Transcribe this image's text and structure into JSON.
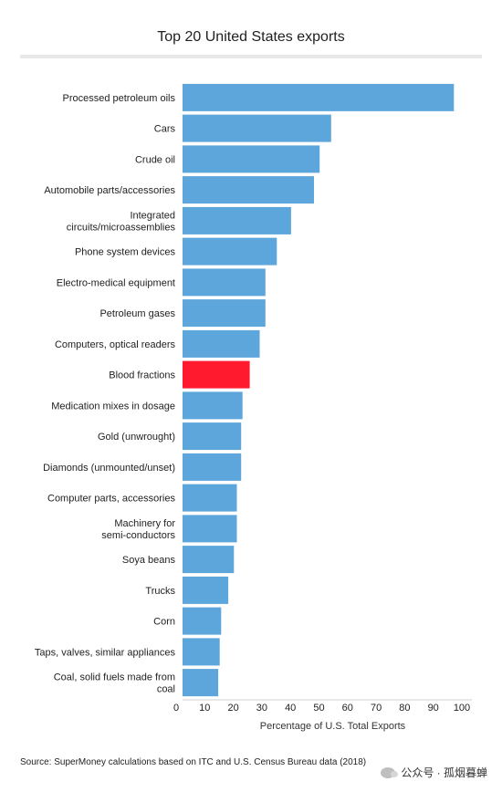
{
  "chart_data": {
    "type": "bar",
    "orientation": "horizontal",
    "title": "Top 20 United States exports",
    "xlabel": "Percentage of U.S. Total Exports",
    "ylabel": "",
    "xlim": [
      0,
      100
    ],
    "xticks": [
      0,
      10,
      20,
      30,
      40,
      50,
      60,
      70,
      80,
      90,
      100
    ],
    "grid": false,
    "categories": [
      "Processed petroleum oils",
      "Cars",
      "Crude oil",
      "Automobile parts/accessories",
      "Integrated\ncircuits/microassemblies",
      "Phone system devices",
      "Electro-medical equipment",
      "Petroleum gases",
      "Computers, optical readers",
      "Blood fractions",
      "Medication mixes in dosage",
      "Gold (unwrought)",
      "Diamonds (unmounted/unset)",
      "Computer parts, accessories",
      "Machinery for\nsemi-conductors",
      "Soya beans",
      "Trucks",
      "Corn",
      "Taps, valves, similar appliances",
      "Coal, solid fuels made from\ncoal"
    ],
    "values": [
      95,
      52,
      48,
      46,
      38,
      33,
      29,
      29,
      27,
      23.5,
      21,
      20.5,
      20.5,
      19,
      19,
      18,
      16,
      13.5,
      13,
      12.5
    ],
    "colors": {
      "default": "#5ca6dc",
      "highlight": "#ff1a2e",
      "highlight_category": "Blood fractions"
    }
  },
  "source": "Source:  SuperMoney calculations based on ITC and U.S. Census Bureau data (2018)",
  "watermark": "公众号 · 孤烟暮蝉"
}
